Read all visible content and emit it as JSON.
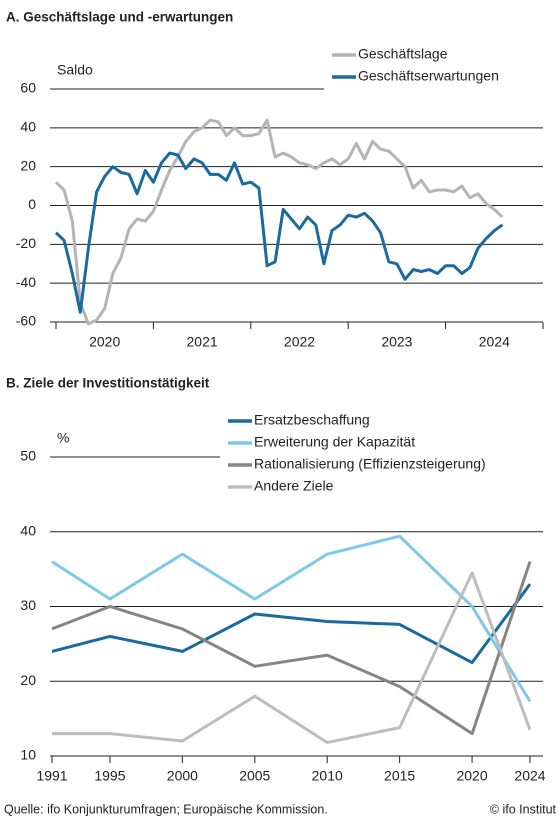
{
  "chart_data": [
    {
      "type": "line",
      "title": "A. Geschäftslage und -erwartungen",
      "y_label": "Saldo",
      "x": [
        2020.0,
        2020.083,
        2020.167,
        2020.25,
        2020.333,
        2020.417,
        2020.5,
        2020.583,
        2020.667,
        2020.75,
        2020.833,
        2020.917,
        2021.0,
        2021.083,
        2021.167,
        2021.25,
        2021.333,
        2021.417,
        2021.5,
        2021.583,
        2021.667,
        2021.75,
        2021.833,
        2021.917,
        2022.0,
        2022.083,
        2022.167,
        2022.25,
        2022.333,
        2022.417,
        2022.5,
        2022.583,
        2022.667,
        2022.75,
        2022.833,
        2022.917,
        2023.0,
        2023.083,
        2023.167,
        2023.25,
        2023.333,
        2023.417,
        2023.5,
        2023.583,
        2023.667,
        2023.75,
        2023.833,
        2023.917,
        2024.0,
        2024.083,
        2024.167,
        2024.25,
        2024.333,
        2024.417,
        2024.5,
        2024.583
      ],
      "series": [
        {
          "name": "Geschäftslage",
          "color": "#b4b4b4",
          "values": [
            12,
            8,
            -8,
            -50,
            -61,
            -59,
            -53,
            -35,
            -27,
            -12,
            -7,
            -8,
            -3,
            8,
            18,
            25,
            33,
            38,
            40,
            44,
            43,
            36,
            40,
            36,
            36,
            37,
            44,
            25,
            27,
            25,
            22,
            21,
            19,
            22,
            24,
            21,
            24,
            32,
            24,
            33,
            29,
            28,
            24,
            20,
            9,
            13,
            7,
            8,
            8,
            7,
            10,
            4,
            6,
            1,
            -2,
            -6
          ]
        },
        {
          "name": "Geschäftserwartungen",
          "color": "#1a6aa0",
          "values": [
            -14,
            -18,
            -35,
            -55,
            -22,
            7,
            15,
            20,
            17,
            16,
            6,
            18,
            12,
            22,
            27,
            26,
            19,
            24,
            22,
            16,
            16,
            13,
            22,
            11,
            12,
            9,
            -31,
            -29,
            -2,
            -7,
            -12,
            -6,
            -10,
            -30,
            -13,
            -10,
            -5,
            -6,
            -4,
            -8,
            -14,
            -29,
            -30,
            -38,
            -33,
            -34,
            -33,
            -35,
            -31,
            -31,
            -35,
            -32,
            -22,
            -17,
            -13,
            -10
          ]
        }
      ],
      "xlim": [
        2020,
        2025
      ],
      "xticks": [
        {
          "value": 2020.5,
          "label": "2020"
        },
        {
          "value": 2021.5,
          "label": "2021"
        },
        {
          "value": 2022.5,
          "label": "2022"
        },
        {
          "value": 2023.5,
          "label": "2023"
        },
        {
          "value": 2024.5,
          "label": "2024"
        }
      ],
      "ylim": [
        -60,
        60
      ],
      "yticks": [
        -60,
        -40,
        -20,
        0,
        20,
        40,
        60
      ],
      "grid": true
    },
    {
      "type": "line",
      "title": "B. Ziele der Investitionstätigkeit",
      "y_label": "%",
      "x": [
        1991,
        1995,
        2000,
        2005,
        2010,
        2015,
        2020,
        2024
      ],
      "series": [
        {
          "name": "Ersatzbeschaffung",
          "color": "#1a6aa0",
          "values": [
            24,
            26,
            24,
            29,
            28,
            27.6,
            22.5,
            33
          ]
        },
        {
          "name": "Erweiterung der Kapazität",
          "color": "#7ec8ea",
          "values": [
            36,
            31,
            37,
            31,
            37,
            39.4,
            30,
            17.3
          ]
        },
        {
          "name": "Rationalisierung (Effizienzsteigerung)",
          "color": "#858585",
          "values": [
            27,
            30,
            27,
            22,
            23.5,
            19.3,
            13,
            36
          ]
        },
        {
          "name": "Andere Ziele",
          "color": "#bdbdbd",
          "values": [
            13,
            13,
            12,
            18,
            11.8,
            13.8,
            34.5,
            13.5
          ]
        }
      ],
      "xlim": [
        1991,
        2024
      ],
      "xticks": [
        1991,
        1995,
        2000,
        2005,
        2010,
        2015,
        2020,
        2024
      ],
      "ylim": [
        10,
        50
      ],
      "yticks": [
        10,
        20,
        30,
        40,
        50
      ],
      "grid": true
    }
  ],
  "footer": {
    "source": "Quelle: ifo Konjunkturumfragen; Europäische Kommission.",
    "copyright": "© ifo Institut"
  }
}
